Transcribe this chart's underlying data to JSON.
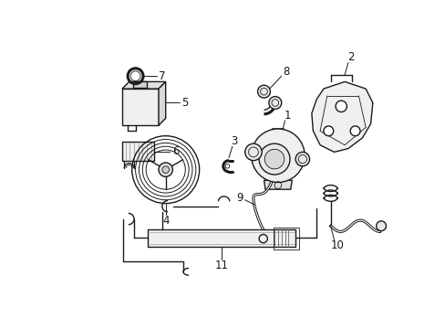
{
  "bg_color": "#ffffff",
  "line_color": "#1a1a1a",
  "fig_width": 4.89,
  "fig_height": 3.6,
  "dpi": 100,
  "lw": 1.0,
  "lw_thick": 2.2,
  "lw_thin": 0.6,
  "label_fontsize": 8.5
}
